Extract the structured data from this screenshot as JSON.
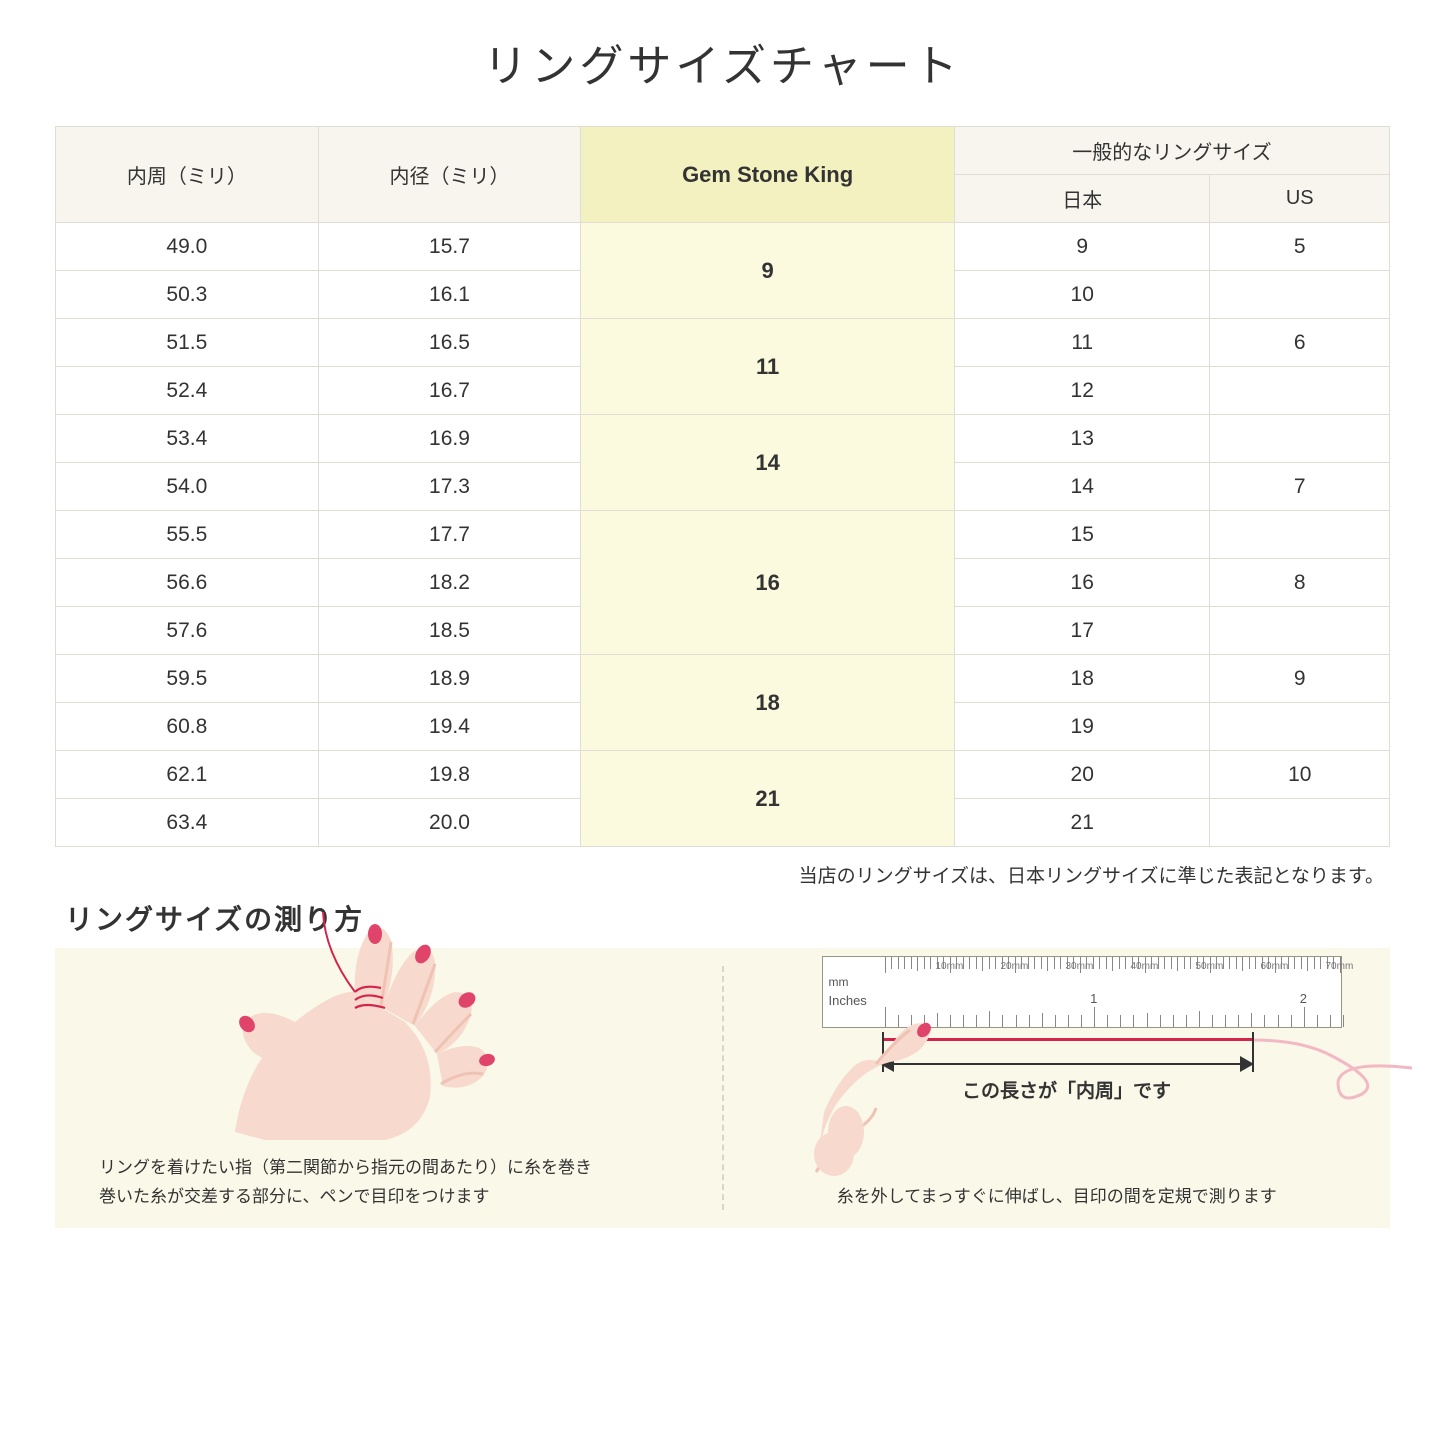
{
  "title": "リングサイズチャート",
  "table": {
    "header_bg": "#f7f5ee",
    "gsk_header_bg": "#f3f1bf",
    "gsk_cell_bg": "#fbfadf",
    "border_color": "#e0ddd4",
    "columns": {
      "circumference": "内周（ミリ）",
      "diameter": "内径（ミリ）",
      "gsk": "Gem Stone King",
      "general_group": "一般的なリングサイズ",
      "japan": "日本",
      "us": "US"
    },
    "groups": [
      {
        "gsk": "9",
        "rows": [
          {
            "circ": "49.0",
            "dia": "15.7",
            "jp": "9",
            "us": "5"
          },
          {
            "circ": "50.3",
            "dia": "16.1",
            "jp": "10",
            "us": ""
          }
        ]
      },
      {
        "gsk": "11",
        "rows": [
          {
            "circ": "51.5",
            "dia": "16.5",
            "jp": "11",
            "us": "6"
          },
          {
            "circ": "52.4",
            "dia": "16.7",
            "jp": "12",
            "us": ""
          }
        ]
      },
      {
        "gsk": "14",
        "rows": [
          {
            "circ": "53.4",
            "dia": "16.9",
            "jp": "13",
            "us": ""
          },
          {
            "circ": "54.0",
            "dia": "17.3",
            "jp": "14",
            "us": "7"
          }
        ]
      },
      {
        "gsk": "16",
        "rows": [
          {
            "circ": "55.5",
            "dia": "17.7",
            "jp": "15",
            "us": ""
          },
          {
            "circ": "56.6",
            "dia": "18.2",
            "jp": "16",
            "us": "8"
          },
          {
            "circ": "57.6",
            "dia": "18.5",
            "jp": "17",
            "us": ""
          }
        ]
      },
      {
        "gsk": "18",
        "rows": [
          {
            "circ": "59.5",
            "dia": "18.9",
            "jp": "18",
            "us": "9"
          },
          {
            "circ": "60.8",
            "dia": "19.4",
            "jp": "19",
            "us": ""
          }
        ]
      },
      {
        "gsk": "21",
        "rows": [
          {
            "circ": "62.1",
            "dia": "19.8",
            "jp": "20",
            "us": "10"
          },
          {
            "circ": "63.4",
            "dia": "20.0",
            "jp": "21",
            "us": ""
          }
        ]
      }
    ]
  },
  "note": "当店のリングサイズは、日本リングサイズに準じた表記となります。",
  "measure": {
    "title": "リングサイズの測り方",
    "panel_bg": "#faf8e8",
    "left_caption_line1": "リングを着けたい指（第二関節から指元の間あたり）に糸を巻き",
    "left_caption_line2": "巻いた糸が交差する部分に、ペンで目印をつけます",
    "right_caption": "糸を外してまっすぐに伸ばし、目印の間を定規で測ります",
    "arrow_label": "この長さが「内周」です",
    "ruler": {
      "mm_unit": "mm",
      "inch_unit": "Inches",
      "mm_labels": [
        "10mm",
        "20mm",
        "30mm",
        "40mm",
        "50mm",
        "60mm",
        "70mm"
      ],
      "inch_labels": [
        "1",
        "2"
      ],
      "border": "#9a9484",
      "tick_color": "#888888"
    },
    "colors": {
      "skin": "#f7d9ce",
      "skin_shadow": "#efc3b4",
      "nail": "#e0446b",
      "thread": "#d4244b",
      "thread_light": "#f2b8c4"
    }
  }
}
